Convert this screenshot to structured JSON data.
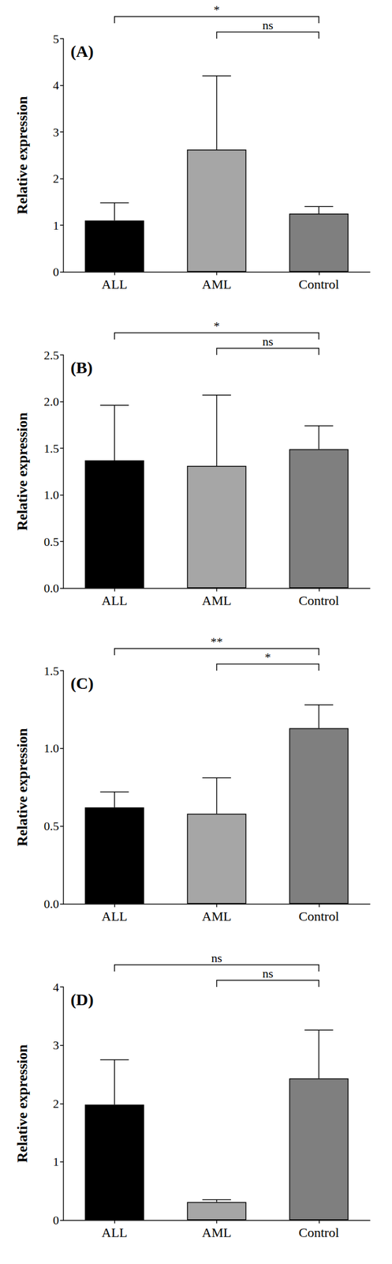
{
  "chart_data": [
    {
      "type": "bar",
      "title": "(A)",
      "y_label": "Relative expression",
      "categories": [
        "ALL",
        "AML",
        "Control"
      ],
      "values": [
        1.1,
        2.62,
        1.25
      ],
      "errors": [
        0.38,
        1.58,
        0.15
      ],
      "colors": [
        "#000000",
        "#a6a6a6",
        "#7f7f7f"
      ],
      "ylim": [
        0,
        5
      ],
      "yticks": [
        0,
        1,
        2,
        3,
        4,
        5
      ],
      "grid": false,
      "annotations": [
        {
          "from": "ALL",
          "to": "Control",
          "label": "*"
        },
        {
          "from": "AML",
          "to": "Control",
          "label": "ns"
        }
      ]
    },
    {
      "type": "bar",
      "title": "(B)",
      "y_label": "Relative expression",
      "categories": [
        "ALL",
        "AML",
        "Control"
      ],
      "values": [
        1.37,
        1.31,
        1.49
      ],
      "errors": [
        0.59,
        0.76,
        0.25
      ],
      "colors": [
        "#000000",
        "#a6a6a6",
        "#7f7f7f"
      ],
      "ylim": [
        0,
        2.5
      ],
      "yticks": [
        {
          "value": 0,
          "label": "0.0"
        },
        0.5,
        {
          "value": 1,
          "label": "1.0"
        },
        1.5,
        {
          "value": 2,
          "label": "2.0"
        },
        2.5
      ],
      "grid": false,
      "annotations": [
        {
          "from": "ALL",
          "to": "Control",
          "label": "*"
        },
        {
          "from": "AML",
          "to": "Control",
          "label": "ns"
        }
      ]
    },
    {
      "type": "bar",
      "title": "(C)",
      "y_label": "Relative expression",
      "categories": [
        "ALL",
        "AML",
        "Control"
      ],
      "values": [
        0.62,
        0.58,
        1.13
      ],
      "errors": [
        0.1,
        0.23,
        0.15
      ],
      "colors": [
        "#000000",
        "#a6a6a6",
        "#7f7f7f"
      ],
      "ylim": [
        0,
        1.5
      ],
      "yticks": [
        {
          "value": 0,
          "label": "0.0"
        },
        0.5,
        {
          "value": 1,
          "label": "1.0"
        },
        1.5
      ],
      "grid": false,
      "annotations": [
        {
          "from": "ALL",
          "to": "Control",
          "label": "**"
        },
        {
          "from": "AML",
          "to": "Control",
          "label": "*"
        }
      ]
    },
    {
      "type": "bar",
      "title": "(D)",
      "y_label": "Relative expression",
      "categories": [
        "ALL",
        "AML",
        "Control"
      ],
      "values": [
        1.98,
        0.31,
        2.43
      ],
      "errors": [
        0.77,
        0.04,
        0.83
      ],
      "colors": [
        "#000000",
        "#a6a6a6",
        "#7f7f7f"
      ],
      "ylim": [
        0,
        4
      ],
      "yticks": [
        0,
        1,
        2,
        3,
        4
      ],
      "grid": false,
      "annotations": [
        {
          "from": "ALL",
          "to": "Control",
          "label": "ns"
        },
        {
          "from": "AML",
          "to": "Control",
          "label": "ns"
        }
      ]
    }
  ]
}
